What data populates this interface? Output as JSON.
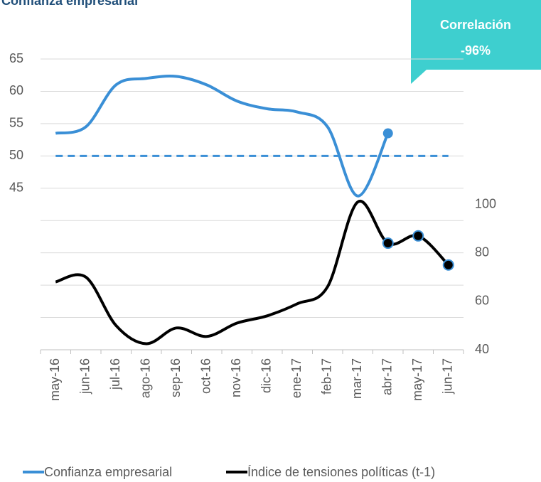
{
  "chart_data": {
    "type": "line",
    "title": "Confianza empresarial",
    "annotation": [
      "Correlación",
      "-96%"
    ],
    "categories": [
      "may-16",
      "jun-16",
      "jul-16",
      "ago-16",
      "sep-16",
      "oct-16",
      "nov-16",
      "dic-16",
      "ene-17",
      "feb-17",
      "mar-17",
      "abr-17",
      "may-17",
      "jun-17"
    ],
    "series": [
      {
        "name": "Confianza empresarial",
        "color": "#3a8fd6",
        "axis": "y",
        "values": [
          53.5,
          54.5,
          61,
          62,
          62.3,
          61,
          58.5,
          57.3,
          56.8,
          54.5,
          43.8,
          53.5,
          null,
          null
        ],
        "markers": [
          11
        ]
      },
      {
        "name": "Índice de tensiones políticas (t-1)",
        "color": "#000000",
        "axis": "y2",
        "values": [
          68,
          70,
          50,
          42.5,
          49,
          45.5,
          51,
          54,
          59,
          66,
          101,
          84,
          87,
          75
        ],
        "markers": [
          11,
          12,
          13
        ]
      }
    ],
    "reference_line": {
      "value": 50,
      "color": "#3a8fd6",
      "dashed": true
    },
    "ylim": [
      20,
      65
    ],
    "yticks": [
      45,
      50,
      55,
      60,
      65
    ],
    "ygrid_extra": [
      20,
      25,
      30,
      35,
      40
    ],
    "y2lim": [
      40,
      160
    ],
    "y2ticks": [
      40,
      60,
      80,
      100
    ],
    "grid": true,
    "legend": "bottom"
  }
}
